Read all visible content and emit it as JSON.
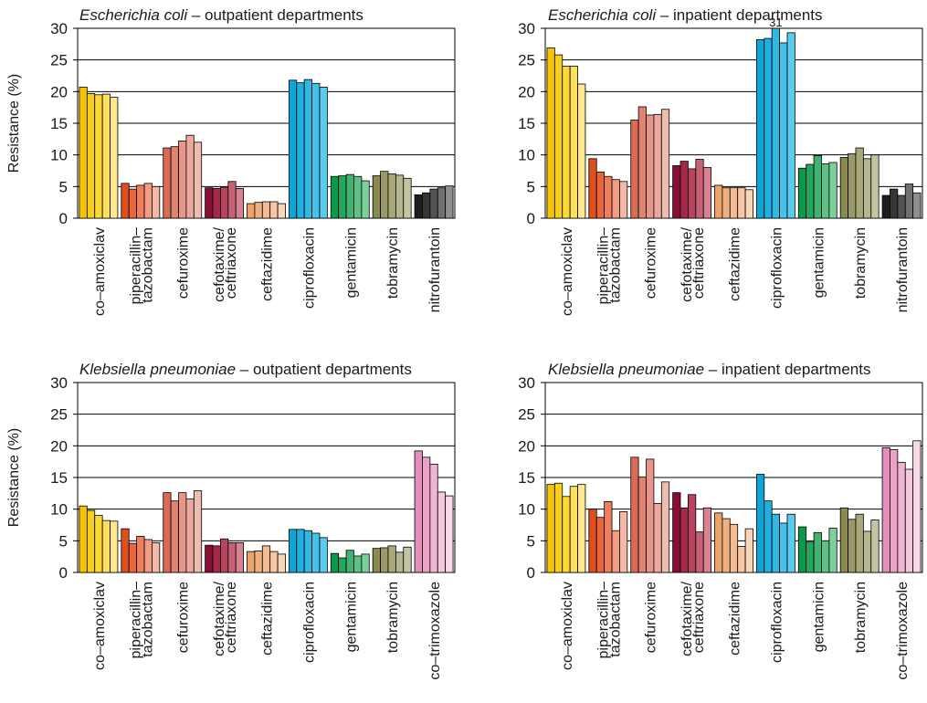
{
  "ylabel": "Resistance (%)",
  "chart_data": [
    {
      "type": "bar",
      "title_italic": "Escherichia coli",
      "title_rest": " – outpatient departments",
      "ylabel": "Resistance (%)",
      "ylim": [
        0,
        30
      ],
      "yticks": [
        0,
        5,
        10,
        15,
        20,
        25,
        30
      ],
      "grid": true,
      "groups": [
        {
          "label": [
            "co-amoxiclav"
          ],
          "colors": [
            "#f5c400",
            "#f8cf1c",
            "#fad83a",
            "#fbe15c",
            "#fde98a"
          ],
          "values": [
            20.7,
            19.7,
            19.5,
            19.6,
            19.1
          ]
        },
        {
          "label": [
            "piperacillin-",
            "tazobactam"
          ],
          "colors": [
            "#e04e1c",
            "#e8663a",
            "#ee8060",
            "#f29c84",
            "#f5b8a6"
          ],
          "values": [
            5.5,
            4.6,
            5.2,
            5.5,
            5.0
          ]
        },
        {
          "label": [
            "cefuroxime"
          ],
          "colors": [
            "#d96b55",
            "#e08470",
            "#e6978a",
            "#eaa99c",
            "#efbcb2"
          ],
          "values": [
            11.1,
            11.3,
            12.2,
            13.1,
            12.0
          ]
        },
        {
          "label": [
            "cefotaxime/",
            "ceftriaxone"
          ],
          "colors": [
            "#8a0e33",
            "#a42948",
            "#b8455f",
            "#c76276",
            "#d88293"
          ],
          "values": [
            4.8,
            4.7,
            4.9,
            5.8,
            4.7
          ]
        },
        {
          "label": [
            "ceftazidime"
          ],
          "colors": [
            "#eca36a",
            "#f0b07e",
            "#f3bc92",
            "#f6c8a6",
            "#f9d5ba"
          ],
          "values": [
            2.3,
            2.5,
            2.6,
            2.6,
            2.3
          ]
        },
        {
          "label": [
            "ciprofloxacin"
          ],
          "colors": [
            "#0ea6d9",
            "#20afdf",
            "#33b8e3",
            "#46c1e8",
            "#5acaed"
          ],
          "values": [
            21.8,
            21.4,
            21.9,
            21.3,
            20.7
          ]
        },
        {
          "label": [
            "gentamicin"
          ],
          "colors": [
            "#0a9a4a",
            "#23a75c",
            "#3fb470",
            "#5cc286",
            "#7ecf9e"
          ],
          "values": [
            6.6,
            6.7,
            6.9,
            6.6,
            5.9
          ]
        },
        {
          "label": [
            "tobramycin"
          ],
          "colors": [
            "#8a8a52",
            "#9a9a66",
            "#a8a87a",
            "#b6b68e",
            "#c4c4a4"
          ],
          "values": [
            6.7,
            7.4,
            7.0,
            6.8,
            6.3
          ]
        },
        {
          "label": [
            "nitrofurantoin"
          ],
          "colors": [
            "#1e1e1e",
            "#363636",
            "#525252",
            "#707070",
            "#8e8e8e"
          ],
          "values": [
            3.7,
            4.0,
            4.6,
            4.8,
            5.1
          ]
        }
      ]
    },
    {
      "type": "bar",
      "title_italic": "Escherichia coli",
      "title_rest": " – inpatient departments",
      "ylabel": "",
      "ylim": [
        0,
        30
      ],
      "yticks": [
        0,
        5,
        10,
        15,
        20,
        25,
        30
      ],
      "grid": true,
      "overflow_label": "31",
      "groups": [
        {
          "label": [
            "co-amoxiclav"
          ],
          "colors": [
            "#f5c400",
            "#f8cf1c",
            "#fad83a",
            "#fbe15c",
            "#fde98a"
          ],
          "values": [
            26.9,
            25.8,
            24.0,
            24.0,
            21.2
          ]
        },
        {
          "label": [
            "piperacillin-",
            "tazobactam"
          ],
          "colors": [
            "#e04e1c",
            "#e8663a",
            "#ee8060",
            "#f29c84",
            "#f5b8a6"
          ],
          "values": [
            9.4,
            7.3,
            6.6,
            6.1,
            5.8
          ]
        },
        {
          "label": [
            "cefuroxime"
          ],
          "colors": [
            "#d96b55",
            "#e08470",
            "#e6978a",
            "#eaa99c",
            "#efbcb2"
          ],
          "values": [
            15.5,
            17.6,
            16.3,
            16.4,
            17.2
          ]
        },
        {
          "label": [
            "cefotaxime/",
            "ceftriaxone"
          ],
          "colors": [
            "#8a0e33",
            "#a42948",
            "#b8455f",
            "#c76276",
            "#d88293"
          ],
          "values": [
            8.3,
            9.0,
            7.8,
            9.3,
            8.0
          ]
        },
        {
          "label": [
            "ceftazidime"
          ],
          "colors": [
            "#eca36a",
            "#f0b07e",
            "#f3bc92",
            "#f6c8a6",
            "#f9d5ba"
          ],
          "values": [
            5.2,
            4.8,
            4.8,
            4.8,
            4.5
          ]
        },
        {
          "label": [
            "ciprofloxacin"
          ],
          "colors": [
            "#0ea6d9",
            "#20afdf",
            "#33b8e3",
            "#46c1e8",
            "#5acaed"
          ],
          "values": [
            28.2,
            28.4,
            31.0,
            27.7,
            29.3
          ]
        },
        {
          "label": [
            "gentamicin"
          ],
          "colors": [
            "#0a9a4a",
            "#23a75c",
            "#3fb470",
            "#5cc286",
            "#7ecf9e"
          ],
          "values": [
            7.9,
            8.5,
            9.9,
            8.6,
            8.8
          ]
        },
        {
          "label": [
            "tobramycin"
          ],
          "colors": [
            "#8a8a52",
            "#9a9a66",
            "#a8a87a",
            "#b6b68e",
            "#c4c4a4"
          ],
          "values": [
            9.6,
            10.2,
            11.1,
            9.4,
            10.0
          ]
        },
        {
          "label": [
            "nitrofurantoin"
          ],
          "colors": [
            "#1e1e1e",
            "#363636",
            "#525252",
            "#707070",
            "#8e8e8e"
          ],
          "values": [
            3.6,
            4.6,
            3.6,
            5.4,
            4.0
          ]
        }
      ]
    },
    {
      "type": "bar",
      "title_italic": "Klebsiella pneumoniae",
      "title_rest": " – outpatient departments",
      "ylabel": "Resistance (%)",
      "ylim": [
        0,
        30
      ],
      "yticks": [
        0,
        5,
        10,
        15,
        20,
        25,
        30
      ],
      "grid": true,
      "groups": [
        {
          "label": [
            "co-amoxiclav"
          ],
          "colors": [
            "#f5c400",
            "#f8cf1c",
            "#fad83a",
            "#fbe15c",
            "#fde98a"
          ],
          "values": [
            10.5,
            9.8,
            9.0,
            8.2,
            8.1
          ]
        },
        {
          "label": [
            "piperacillin-",
            "tazobactam"
          ],
          "colors": [
            "#e04e1c",
            "#e8663a",
            "#ee8060",
            "#f29c84",
            "#f5b8a6"
          ],
          "values": [
            6.9,
            4.6,
            5.7,
            5.2,
            4.7
          ]
        },
        {
          "label": [
            "cefuroxime"
          ],
          "colors": [
            "#d96b55",
            "#e08470",
            "#e6978a",
            "#eaa99c",
            "#efbcb2"
          ],
          "values": [
            12.6,
            11.3,
            12.6,
            11.6,
            12.9
          ]
        },
        {
          "label": [
            "cefotaxime/",
            "ceftriaxone"
          ],
          "colors": [
            "#8a0e33",
            "#a42948",
            "#b8455f",
            "#c76276",
            "#d88293"
          ],
          "values": [
            4.3,
            4.2,
            5.3,
            4.7,
            4.7
          ]
        },
        {
          "label": [
            "ceftazidime"
          ],
          "colors": [
            "#eca36a",
            "#f0b07e",
            "#f3bc92",
            "#f6c8a6",
            "#f9d5ba"
          ],
          "values": [
            3.3,
            3.4,
            4.2,
            3.3,
            2.9
          ]
        },
        {
          "label": [
            "ciprofloxacin"
          ],
          "colors": [
            "#0ea6d9",
            "#20afdf",
            "#33b8e3",
            "#46c1e8",
            "#5acaed"
          ],
          "values": [
            6.8,
            6.8,
            6.6,
            6.2,
            5.5
          ]
        },
        {
          "label": [
            "gentamicin"
          ],
          "colors": [
            "#0a9a4a",
            "#23a75c",
            "#3fb470",
            "#5cc286",
            "#7ecf9e"
          ],
          "values": [
            3.0,
            2.3,
            3.5,
            2.6,
            2.9
          ]
        },
        {
          "label": [
            "tobramycin"
          ],
          "colors": [
            "#8a8a52",
            "#9a9a66",
            "#a8a87a",
            "#b6b68e",
            "#c4c4a4"
          ],
          "values": [
            3.8,
            3.9,
            4.2,
            3.2,
            4.0
          ]
        },
        {
          "label": [
            "co-trimoxazole"
          ],
          "colors": [
            "#e48fba",
            "#eaa2c5",
            "#f0b6d1",
            "#f4c8dc",
            "#f8dae7"
          ],
          "values": [
            19.2,
            18.2,
            17.1,
            12.7,
            12.1
          ]
        }
      ]
    },
    {
      "type": "bar",
      "title_italic": "Klebsiella pneumoniae",
      "title_rest": " – inpatient departments",
      "ylabel": "",
      "ylim": [
        0,
        30
      ],
      "yticks": [
        0,
        5,
        10,
        15,
        20,
        25,
        30
      ],
      "grid": true,
      "groups": [
        {
          "label": [
            "co-amoxiclav"
          ],
          "colors": [
            "#f5c400",
            "#f8cf1c",
            "#fad83a",
            "#fbe15c",
            "#fde98a"
          ],
          "values": [
            13.9,
            14.1,
            12.0,
            13.6,
            13.9
          ]
        },
        {
          "label": [
            "piperacillin-",
            "tazobactam"
          ],
          "colors": [
            "#e04e1c",
            "#e8663a",
            "#ee8060",
            "#f29c84",
            "#f5b8a6"
          ],
          "values": [
            10.0,
            8.7,
            11.2,
            6.6,
            9.6
          ]
        },
        {
          "label": [
            "cefuroxime"
          ],
          "colors": [
            "#d96b55",
            "#e08470",
            "#e6978a",
            "#eaa99c",
            "#efbcb2"
          ],
          "values": [
            18.2,
            15.1,
            17.9,
            10.9,
            14.3
          ]
        },
        {
          "label": [
            "cefotaxime/",
            "ceftriaxone"
          ],
          "colors": [
            "#8a0e33",
            "#a42948",
            "#b8455f",
            "#c76276",
            "#d88293"
          ],
          "values": [
            12.6,
            10.2,
            12.3,
            6.4,
            10.2
          ]
        },
        {
          "label": [
            "ceftazidime"
          ],
          "colors": [
            "#eca36a",
            "#f0b07e",
            "#f3bc92",
            "#f6c8a6",
            "#f9d5ba"
          ],
          "values": [
            9.4,
            8.5,
            7.6,
            4.1,
            6.9
          ]
        },
        {
          "label": [
            "ciprofloxacin"
          ],
          "colors": [
            "#0ea6d9",
            "#20afdf",
            "#33b8e3",
            "#46c1e8",
            "#5acaed"
          ],
          "values": [
            15.5,
            11.3,
            9.2,
            7.8,
            9.2
          ]
        },
        {
          "label": [
            "gentamicin"
          ],
          "colors": [
            "#0a9a4a",
            "#23a75c",
            "#3fb470",
            "#5cc286",
            "#7ecf9e"
          ],
          "values": [
            7.2,
            4.8,
            6.3,
            5.0,
            7.0
          ]
        },
        {
          "label": [
            "tobramycin"
          ],
          "colors": [
            "#8a8a52",
            "#9a9a66",
            "#a8a87a",
            "#b6b68e",
            "#c4c4a4"
          ],
          "values": [
            10.2,
            8.4,
            9.2,
            6.5,
            8.3
          ]
        },
        {
          "label": [
            "co-trimoxazole"
          ],
          "colors": [
            "#e48fba",
            "#eaa2c5",
            "#f0b6d1",
            "#f4c8dc",
            "#f8dae7"
          ],
          "values": [
            19.7,
            19.4,
            17.4,
            16.3,
            20.8
          ]
        }
      ]
    }
  ]
}
